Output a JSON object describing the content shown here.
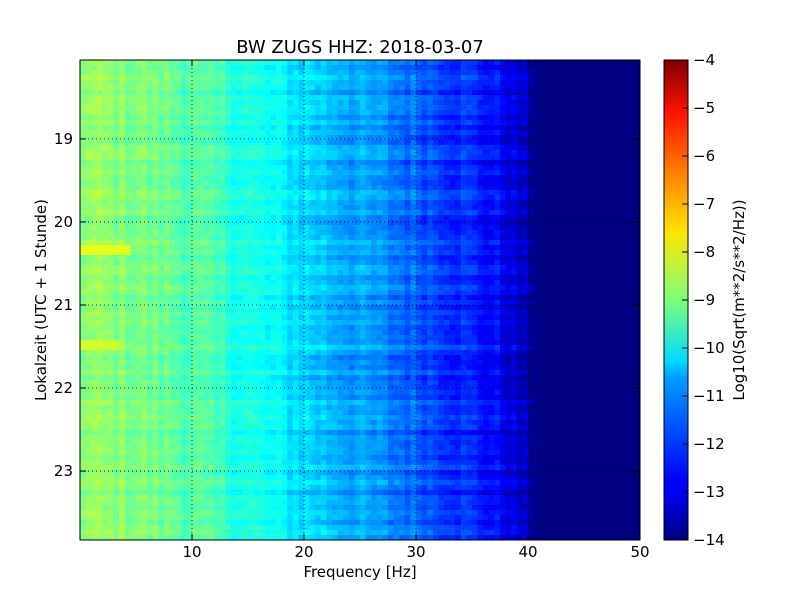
{
  "chart_data": {
    "type": "heatmap",
    "title": "BW ZUGS HHZ: 2018-03-07",
    "xlabel": "Frequency [Hz]",
    "ylabel": "Lokalzeit (UTC + 1 Stunde)",
    "xlim": [
      0,
      50
    ],
    "ylim": [
      18.05,
      23.83
    ],
    "y_inverted": true,
    "x_ticks": [
      10,
      20,
      30,
      40,
      50
    ],
    "y_ticks": [
      19,
      20,
      21,
      22,
      23
    ],
    "grid": true,
    "colormap": "jet",
    "colorbar": {
      "label": "Log10(Sqrt(m**2/s**2/Hz))",
      "range": [
        -14,
        -4
      ],
      "ticks": [
        -14,
        -13,
        -12,
        -11,
        -10,
        -9,
        -8,
        -7,
        -6,
        -5,
        -4
      ]
    },
    "value_profile_by_frequency": {
      "frequency_hz": [
        0,
        5,
        10,
        15,
        20,
        25,
        30,
        35,
        38,
        40,
        41,
        50
      ],
      "log10_amplitude": [
        -8.8,
        -9.0,
        -9.4,
        -10.0,
        -10.6,
        -11.2,
        -11.8,
        -12.4,
        -12.9,
        -13.6,
        -14.0,
        -14.0
      ]
    },
    "notable_features": [
      {
        "frequency_hz": [
          0,
          4
        ],
        "time": 20.3,
        "log10_amplitude": -8.0
      },
      {
        "frequency_hz": [
          0,
          3
        ],
        "time": 21.45,
        "log10_amplitude": -8.2
      }
    ]
  }
}
